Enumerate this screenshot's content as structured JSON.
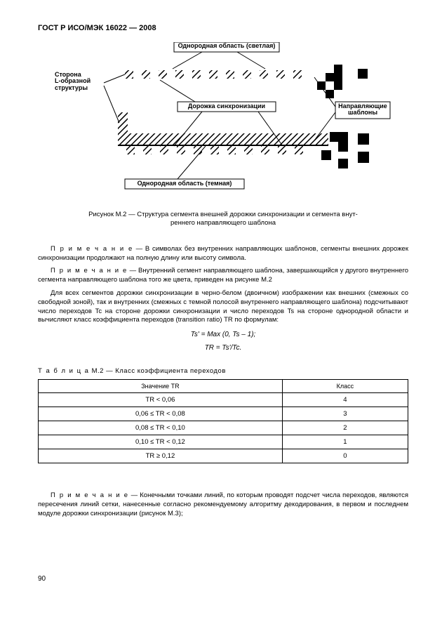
{
  "header": "ГОСТ Р ИСО/МЭК 16022 — 2008",
  "figure": {
    "labels": {
      "top": "Однородная область (светлая)",
      "left": "Сторона\nL-образной\nструктуры",
      "mid": "Дорожка синхронизации",
      "right": "Направляющие\nшаблоны",
      "bottom": "Однородная область (темная)"
    },
    "caption": "Рисунок М.2 — Структура сегмента внешней дорожки синхронизации и сегмента внут-\nреннего направляющего шаблона"
  },
  "notes": {
    "n1_label": "П р и м е ч а н и е",
    "n1": " — В символах без внутренних направляющих шаблонов, сегменты внешних дорожек синхронизации продолжают на полную длину или высоту символа.",
    "n2_label": "П р и м е ч а н и е",
    "n2": " — Внутренний сегмент направляющего шаблона, завершающийся у другого внутреннего сегмента направляющего шаблона того же цвета, приведен на рисунке М.2",
    "para": "Для всех сегментов дорожки синхронизации в черно-белом (двоичном) изображении как внешних (смежных со свободной зоной), так и внутренних (смежных с темной полосой внутреннего направляющего шаблона) подсчитывают число переходов Tc на стороне дорожки синхронизации и число переходов Ts на стороне однородной области и вычисляют класс коэффициента переходов (transition ratio) TR по формулам:",
    "formula1": "Ts' = Max (0, Ts – 1);",
    "formula2": "TR = Ts'/Tc.",
    "n3_label": "П р и м е ч а н и е",
    "n3": " — Конечными точками линий, по которым проводят подсчет числа переходов, являются пересечения линий сетки, нанесенные согласно рекомендуемому алгоритму декодирования, в первом и последнем модуле дорожки синхронизации (рисунок М.3);"
  },
  "table": {
    "title_label": "Т а б л и ц а",
    "title_rest": "  М.2 — Класс коэффициента переходов",
    "headers": [
      "Значение TR",
      "Класс"
    ],
    "rows": [
      [
        "TR < 0,06",
        "4"
      ],
      [
        "0,06 ≤ TR < 0,08",
        "3"
      ],
      [
        "0,08 ≤ TR < 0,10",
        "2"
      ],
      [
        "0,10 ≤ TR < 0,12",
        "1"
      ],
      [
        "TR ≥ 0,12",
        "0"
      ]
    ]
  },
  "pagenum": "90",
  "style": {
    "background": "#ffffff",
    "text_color": "#000000",
    "border_color": "#000000",
    "font_body_pt": 9.5,
    "font_label_pt": 9,
    "hatch": "#000000"
  }
}
